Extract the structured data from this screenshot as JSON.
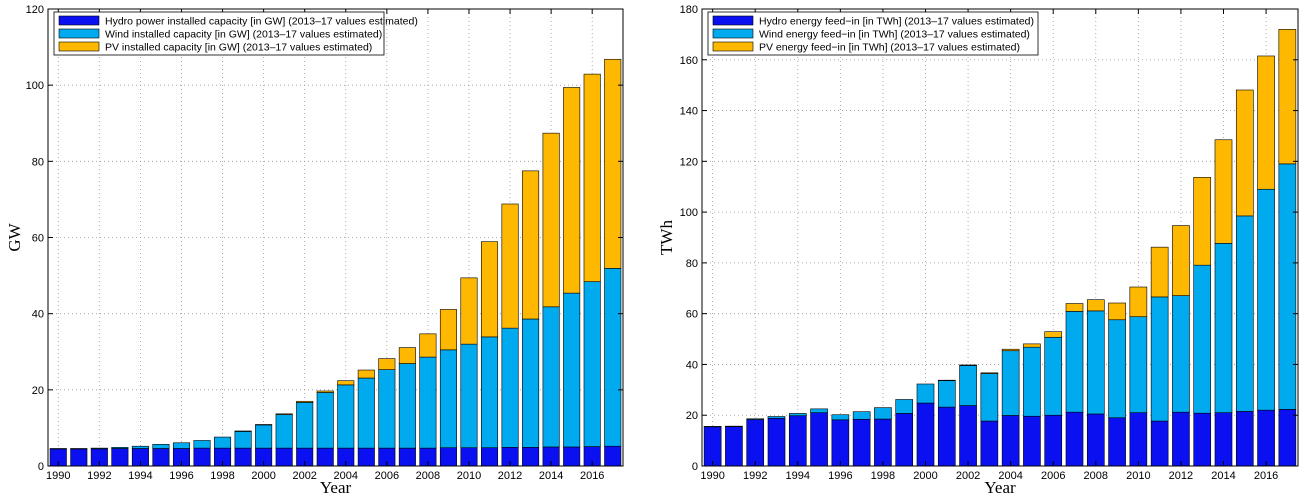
{
  "chart_data": [
    {
      "type": "bar",
      "stacked": true,
      "xlabel": "Year",
      "ylabel": "GW",
      "xlim": [
        1990,
        2017
      ],
      "ylim": [
        0,
        120
      ],
      "x_ticks": [
        "1990",
        "1992",
        "1994",
        "1996",
        "1998",
        "2000",
        "2002",
        "2004",
        "2006",
        "2008",
        "2010",
        "2012",
        "2014",
        "2016"
      ],
      "y_ticks": [
        "0",
        "20",
        "40",
        "60",
        "80",
        "100",
        "120"
      ],
      "grid": true,
      "legend_position": "top-left",
      "categories": [
        1990,
        1991,
        1992,
        1993,
        1994,
        1995,
        1996,
        1997,
        1998,
        1999,
        2000,
        2001,
        2002,
        2003,
        2004,
        2005,
        2006,
        2007,
        2008,
        2009,
        2010,
        2011,
        2012,
        2013,
        2014,
        2015,
        2016,
        2017
      ],
      "series": [
        {
          "name": "Hydro power installed capacity [in GW] (2013–17 values estimated)",
          "color": "#0a10f0",
          "values": [
            4.5,
            4.5,
            4.5,
            4.6,
            4.6,
            4.6,
            4.6,
            4.7,
            4.7,
            4.7,
            4.7,
            4.7,
            4.7,
            4.7,
            4.7,
            4.7,
            4.7,
            4.7,
            4.7,
            4.8,
            4.8,
            4.8,
            4.9,
            4.9,
            5.0,
            5.0,
            5.1,
            5.2
          ]
        },
        {
          "name": "Wind installed capacity [in GW] (2013–17 values estimated)",
          "color": "#00aaee",
          "values": [
            0.1,
            0.1,
            0.2,
            0.3,
            0.6,
            1.1,
            1.5,
            2.0,
            2.9,
            4.4,
            6.1,
            8.8,
            12.0,
            14.6,
            16.6,
            18.4,
            20.6,
            22.2,
            23.9,
            25.7,
            27.2,
            29.1,
            31.3,
            33.7,
            36.8,
            40.4,
            43.3,
            46.7
          ]
        },
        {
          "name": "PV installed capacity [in GW] (2013–17 values estimated)",
          "color": "#ffb800",
          "values": [
            0,
            0,
            0,
            0,
            0,
            0,
            0,
            0,
            0,
            0.1,
            0.1,
            0.2,
            0.3,
            0.4,
            1.1,
            2.1,
            2.9,
            4.2,
            6.1,
            10.6,
            17.4,
            25.0,
            32.6,
            38.9,
            45.6,
            54.0,
            54.5,
            54.9
          ]
        }
      ]
    },
    {
      "type": "bar",
      "stacked": true,
      "xlabel": "Year",
      "ylabel": "TWh",
      "xlim": [
        1990,
        2017
      ],
      "ylim": [
        0,
        180
      ],
      "x_ticks": [
        "1990",
        "1992",
        "1994",
        "1996",
        "1998",
        "2000",
        "2002",
        "2004",
        "2006",
        "2008",
        "2010",
        "2012",
        "2014",
        "2016"
      ],
      "y_ticks": [
        "0",
        "20",
        "40",
        "60",
        "80",
        "100",
        "120",
        "140",
        "160",
        "180"
      ],
      "grid": true,
      "legend_position": "top-left",
      "categories": [
        1990,
        1991,
        1992,
        1993,
        1994,
        1995,
        1996,
        1997,
        1998,
        1999,
        2000,
        2001,
        2002,
        2003,
        2004,
        2005,
        2006,
        2007,
        2008,
        2009,
        2010,
        2011,
        2012,
        2013,
        2014,
        2015,
        2016,
        2017
      ],
      "series": [
        {
          "name": "Hydro energy feed−in [in TWh] (2013–17 values estimated)",
          "color": "#0a10f0",
          "values": [
            15.5,
            15.5,
            18.3,
            18.8,
            19.8,
            21.0,
            18.2,
            18.4,
            18.5,
            20.7,
            24.8,
            23.2,
            23.8,
            17.7,
            19.9,
            19.6,
            20.0,
            21.2,
            20.5,
            19.0,
            21.0,
            17.7,
            21.2,
            20.8,
            21.0,
            21.5,
            22.0,
            22.3
          ]
        },
        {
          "name": "Wind energy feed−in [in TWh] (2013–17 values estimated)",
          "color": "#00aaee",
          "values": [
            0.1,
            0.2,
            0.3,
            0.7,
            0.9,
            1.5,
            2.0,
            3.0,
            4.5,
            5.5,
            7.5,
            10.5,
            15.8,
            18.7,
            25.5,
            27.2,
            30.7,
            39.7,
            40.6,
            38.6,
            37.8,
            48.9,
            45.9,
            58.3,
            66.7,
            77.0,
            87.0,
            96.7
          ]
        },
        {
          "name": "PV energy feed−in [in TWh] (2013–17 values estimated)",
          "color": "#ffb800",
          "values": [
            0,
            0,
            0,
            0,
            0,
            0,
            0,
            0,
            0,
            0,
            0,
            0.1,
            0.2,
            0.3,
            0.6,
            1.3,
            2.2,
            3.1,
            4.4,
            6.6,
            11.7,
            19.6,
            27.6,
            34.6,
            40.8,
            49.6,
            52.5,
            53.0
          ]
        }
      ]
    }
  ]
}
